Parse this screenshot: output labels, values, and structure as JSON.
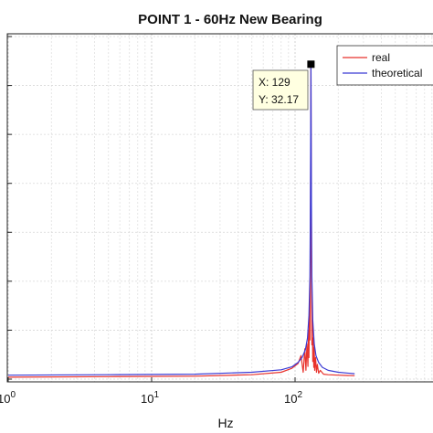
{
  "chart_data": {
    "type": "line",
    "title": "POINT 1 - 60Hz New Bearing",
    "xlabel": "Hz",
    "ylabel": "",
    "xscale": "log",
    "xlim": [
      1,
      1000
    ],
    "ylim": [
      0,
      35
    ],
    "grid": true,
    "legend_position": "top-right",
    "x_ticks": [
      {
        "value": 1,
        "base": "10",
        "exp": "0"
      },
      {
        "value": 10,
        "base": "10",
        "exp": "1"
      },
      {
        "value": 100,
        "base": "10",
        "exp": "2"
      }
    ],
    "series": [
      {
        "name": "real",
        "color": "#e8322c",
        "x": [
          1,
          5,
          20,
          50,
          80,
          95,
          105,
          110,
          114,
          117,
          119,
          121,
          123,
          124,
          125,
          126,
          127,
          128,
          129,
          130,
          131,
          132,
          133,
          134,
          135,
          136,
          137,
          139,
          141,
          143,
          146,
          150,
          158,
          170,
          200,
          260
        ],
        "y": [
          0.2,
          0.25,
          0.3,
          0.45,
          0.7,
          1.1,
          1.6,
          2.4,
          0.7,
          3.1,
          0.9,
          3.6,
          1.3,
          5.0,
          2.2,
          7.5,
          4.0,
          14.0,
          32.17,
          12.0,
          3.5,
          6.0,
          1.8,
          4.2,
          1.2,
          3.2,
          0.9,
          2.2,
          0.7,
          1.5,
          0.6,
          0.9,
          0.5,
          0.45,
          0.4,
          0.35
        ]
      },
      {
        "name": "theoretical",
        "color": "#3b3bd4",
        "x": [
          1,
          5,
          20,
          50,
          80,
          95,
          105,
          112,
          118,
          122,
          125,
          127,
          128,
          129,
          130,
          131,
          133,
          136,
          140,
          146,
          155,
          170,
          200,
          260
        ],
        "y": [
          0.4,
          0.45,
          0.5,
          0.7,
          0.95,
          1.25,
          1.7,
          2.2,
          3.0,
          4.2,
          6.5,
          10.5,
          18.0,
          32.17,
          18.0,
          10.5,
          6.0,
          3.6,
          2.4,
          1.7,
          1.2,
          0.9,
          0.7,
          0.55
        ]
      }
    ],
    "datatip": {
      "x": 129,
      "y": 32.17,
      "x_text": "X: 129",
      "y_text": "Y: 32.17"
    }
  }
}
